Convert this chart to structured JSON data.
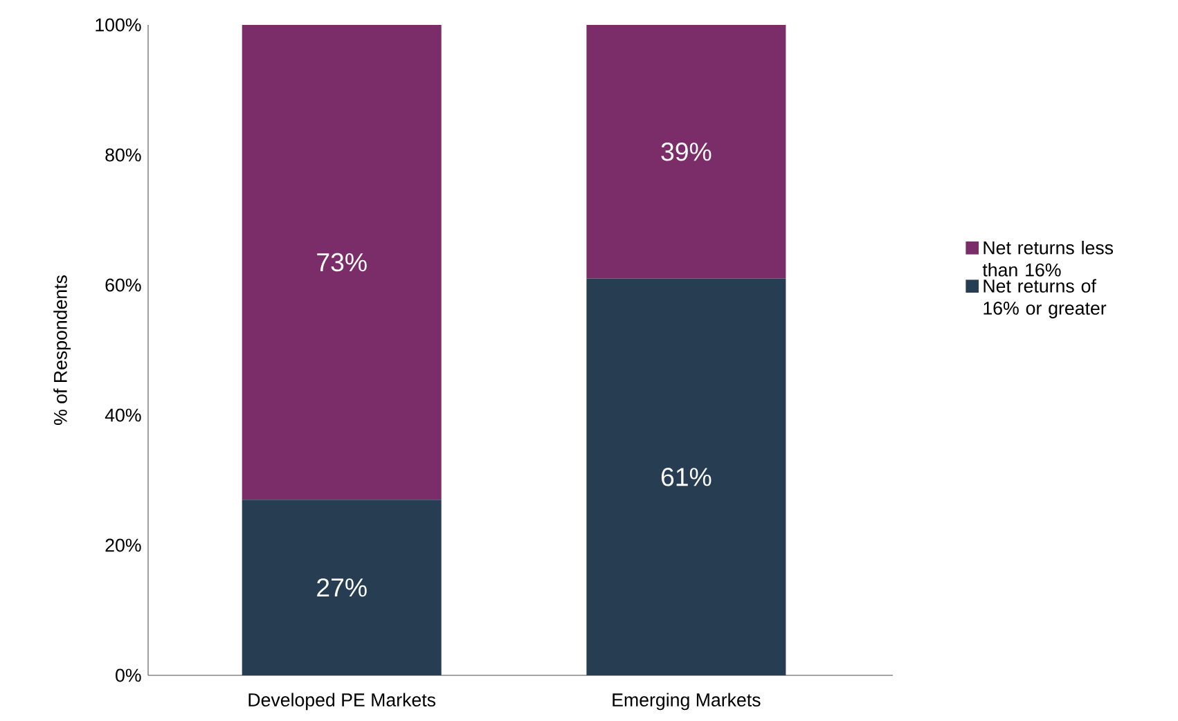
{
  "chart_data": {
    "type": "bar",
    "stacked": true,
    "categories": [
      "Developed PE Markets",
      "Emerging Markets"
    ],
    "ylabel": "% of Respondents",
    "series": [
      {
        "name": "Net returns of 16% or greater",
        "color": "#263d52",
        "values": [
          27,
          61
        ],
        "value_labels": [
          "27%",
          "61%"
        ]
      },
      {
        "name": "Net returns less than 16%",
        "color": "#7b2d6a",
        "values": [
          73,
          39
        ],
        "value_labels": [
          "73%",
          "39%"
        ]
      }
    ],
    "ylim": [
      0,
      100
    ],
    "yticks": [
      {
        "value": 0,
        "label": "0%"
      },
      {
        "value": 20,
        "label": "20%"
      },
      {
        "value": 40,
        "label": "40%"
      },
      {
        "value": 60,
        "label": "60%"
      },
      {
        "value": 80,
        "label": "80%"
      },
      {
        "value": 100,
        "label": "100%"
      }
    ],
    "legend": "right",
    "grid": false
  }
}
